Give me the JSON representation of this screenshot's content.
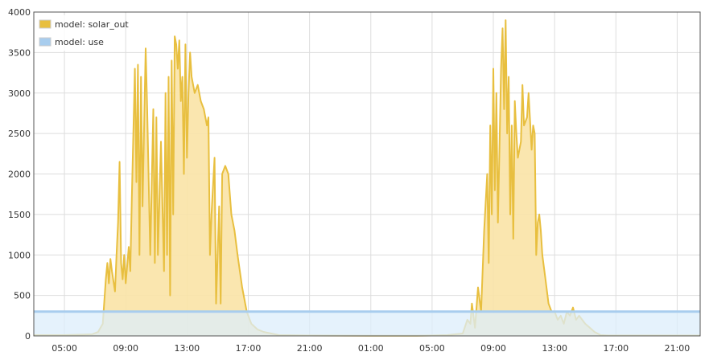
{
  "chart_data": {
    "type": "area",
    "title": "",
    "xlabel": "",
    "ylabel": "",
    "x_unit": "hours",
    "xlim": [
      3.0,
      46.5
    ],
    "ylim": [
      0,
      4000
    ],
    "grid": true,
    "legend_position": "top-left",
    "x_ticks": [
      {
        "x": 5,
        "label": "05:00"
      },
      {
        "x": 9,
        "label": "09:00"
      },
      {
        "x": 13,
        "label": "13:00"
      },
      {
        "x": 17,
        "label": "17:00"
      },
      {
        "x": 21,
        "label": "21:00"
      },
      {
        "x": 25,
        "label": "01:00"
      },
      {
        "x": 29,
        "label": "05:00"
      },
      {
        "x": 33,
        "label": "09:00"
      },
      {
        "x": 37,
        "label": "13:00"
      },
      {
        "x": 41,
        "label": "17:00"
      },
      {
        "x": 45,
        "label": "21:00"
      }
    ],
    "y_ticks": [
      0,
      500,
      1000,
      1500,
      2000,
      2500,
      3000,
      3500,
      4000
    ],
    "series": [
      {
        "name": "model: solar_out",
        "color": "#e8bf3f",
        "fill": "#f9e3a6",
        "points": [
          [
            3.0,
            10
          ],
          [
            4.0,
            10
          ],
          [
            5.0,
            10
          ],
          [
            6.0,
            15
          ],
          [
            6.8,
            20
          ],
          [
            7.2,
            50
          ],
          [
            7.5,
            150
          ],
          [
            7.7,
            700
          ],
          [
            7.8,
            900
          ],
          [
            7.9,
            650
          ],
          [
            8.0,
            950
          ],
          [
            8.1,
            800
          ],
          [
            8.3,
            550
          ],
          [
            8.4,
            1000
          ],
          [
            8.5,
            1400
          ],
          [
            8.6,
            2150
          ],
          [
            8.7,
            900
          ],
          [
            8.8,
            700
          ],
          [
            8.9,
            1000
          ],
          [
            9.0,
            650
          ],
          [
            9.2,
            1100
          ],
          [
            9.3,
            800
          ],
          [
            9.4,
            1700
          ],
          [
            9.5,
            2500
          ],
          [
            9.6,
            3300
          ],
          [
            9.7,
            1900
          ],
          [
            9.8,
            3350
          ],
          [
            9.9,
            1000
          ],
          [
            10.0,
            3200
          ],
          [
            10.1,
            1600
          ],
          [
            10.3,
            3550
          ],
          [
            10.4,
            2800
          ],
          [
            10.6,
            1000
          ],
          [
            10.8,
            2800
          ],
          [
            10.9,
            900
          ],
          [
            11.0,
            2700
          ],
          [
            11.1,
            1000
          ],
          [
            11.3,
            2400
          ],
          [
            11.5,
            800
          ],
          [
            11.6,
            3000
          ],
          [
            11.7,
            1000
          ],
          [
            11.8,
            3200
          ],
          [
            11.9,
            500
          ],
          [
            12.0,
            3400
          ],
          [
            12.1,
            1500
          ],
          [
            12.2,
            3700
          ],
          [
            12.3,
            3600
          ],
          [
            12.4,
            3300
          ],
          [
            12.5,
            3650
          ],
          [
            12.6,
            2900
          ],
          [
            12.7,
            3200
          ],
          [
            12.8,
            2000
          ],
          [
            12.9,
            3600
          ],
          [
            13.0,
            2200
          ],
          [
            13.1,
            3000
          ],
          [
            13.2,
            3500
          ],
          [
            13.3,
            3200
          ],
          [
            13.5,
            3000
          ],
          [
            13.7,
            3100
          ],
          [
            13.9,
            2900
          ],
          [
            14.1,
            2800
          ],
          [
            14.3,
            2600
          ],
          [
            14.4,
            2700
          ],
          [
            14.5,
            1000
          ],
          [
            14.6,
            1500
          ],
          [
            14.8,
            2200
          ],
          [
            14.9,
            400
          ],
          [
            15.1,
            1600
          ],
          [
            15.2,
            400
          ],
          [
            15.3,
            2000
          ],
          [
            15.5,
            2100
          ],
          [
            15.7,
            2000
          ],
          [
            15.9,
            1500
          ],
          [
            16.1,
            1300
          ],
          [
            16.3,
            1000
          ],
          [
            16.6,
            600
          ],
          [
            16.9,
            300
          ],
          [
            17.2,
            150
          ],
          [
            17.6,
            80
          ],
          [
            18.0,
            50
          ],
          [
            18.5,
            30
          ],
          [
            19.0,
            10
          ],
          [
            21.0,
            5
          ],
          [
            25.0,
            3
          ],
          [
            28.0,
            3
          ],
          [
            29.0,
            5
          ],
          [
            30.0,
            10
          ],
          [
            31.0,
            30
          ],
          [
            31.3,
            200
          ],
          [
            31.5,
            150
          ],
          [
            31.6,
            400
          ],
          [
            31.8,
            100
          ],
          [
            32.0,
            600
          ],
          [
            32.2,
            300
          ],
          [
            32.4,
            1300
          ],
          [
            32.6,
            2000
          ],
          [
            32.7,
            900
          ],
          [
            32.8,
            2600
          ],
          [
            32.9,
            1500
          ],
          [
            33.0,
            3300
          ],
          [
            33.1,
            1800
          ],
          [
            33.2,
            3000
          ],
          [
            33.3,
            1400
          ],
          [
            33.4,
            2300
          ],
          [
            33.5,
            3300
          ],
          [
            33.6,
            3800
          ],
          [
            33.7,
            2800
          ],
          [
            33.8,
            3900
          ],
          [
            33.9,
            2500
          ],
          [
            34.0,
            3200
          ],
          [
            34.1,
            1500
          ],
          [
            34.2,
            2600
          ],
          [
            34.3,
            1200
          ],
          [
            34.4,
            2900
          ],
          [
            34.5,
            2500
          ],
          [
            34.6,
            2200
          ],
          [
            34.8,
            2400
          ],
          [
            34.9,
            3100
          ],
          [
            35.0,
            2600
          ],
          [
            35.2,
            2700
          ],
          [
            35.3,
            3000
          ],
          [
            35.5,
            2300
          ],
          [
            35.6,
            2600
          ],
          [
            35.7,
            2500
          ],
          [
            35.8,
            1000
          ],
          [
            35.9,
            1400
          ],
          [
            36.0,
            1500
          ],
          [
            36.1,
            1300
          ],
          [
            36.2,
            1000
          ],
          [
            36.4,
            700
          ],
          [
            36.6,
            400
          ],
          [
            36.8,
            300
          ],
          [
            37.0,
            300
          ],
          [
            37.2,
            200
          ],
          [
            37.4,
            250
          ],
          [
            37.6,
            150
          ],
          [
            37.8,
            300
          ],
          [
            38.0,
            250
          ],
          [
            38.2,
            350
          ],
          [
            38.4,
            200
          ],
          [
            38.6,
            250
          ],
          [
            38.8,
            200
          ],
          [
            39.0,
            150
          ],
          [
            39.3,
            100
          ],
          [
            39.6,
            50
          ],
          [
            40.0,
            10
          ],
          [
            40.5,
            5
          ],
          [
            41.0,
            5
          ],
          [
            42.0,
            5
          ],
          [
            46.5,
            5
          ]
        ]
      },
      {
        "name": "model: use",
        "color": "#a8cdee",
        "fill": "#dceefb",
        "points": [
          [
            3.0,
            300
          ],
          [
            46.5,
            300
          ]
        ]
      }
    ]
  }
}
